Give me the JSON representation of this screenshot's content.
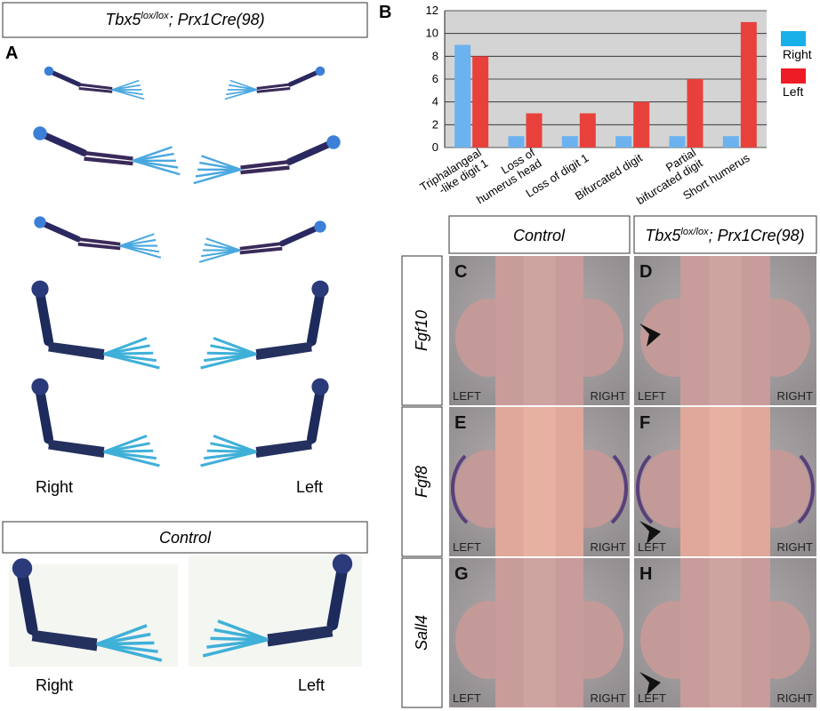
{
  "panel_a": {
    "label": "A",
    "title": {
      "gene": "Tbx5",
      "sup": "lox/lox",
      "rest": "; Prx1Cre(98)"
    },
    "side_labels": [
      "Right",
      "Left"
    ],
    "control": {
      "title": "Control",
      "side_labels": [
        "Right",
        "Left"
      ]
    }
  },
  "panel_b_label": "B",
  "chart_data": {
    "type": "bar",
    "categories": [
      [
        "Triphalangeal",
        "-like digit 1"
      ],
      [
        "Loss of",
        "humerus head"
      ],
      [
        "Loss of digit 1"
      ],
      [
        "Bifurcated digit"
      ],
      [
        "Partial",
        "bifurcated digit"
      ],
      [
        "Short humerus"
      ]
    ],
    "series": [
      {
        "name": "Right",
        "color": "#6cb2ee",
        "legend_color": "#19b0ea",
        "values": [
          9,
          1,
          1,
          1,
          1,
          1
        ]
      },
      {
        "name": "Left",
        "color": "#e8413c",
        "legend_color": "#ee1c24",
        "values": [
          8,
          3,
          3,
          4,
          6,
          11
        ]
      }
    ],
    "ylim": [
      0,
      12
    ],
    "yticks": [
      0,
      2,
      4,
      6,
      8,
      10,
      12
    ],
    "grid": true
  },
  "panel_cdh": {
    "column_headers": {
      "control": "Control",
      "mutant": {
        "gene": "Tbx5",
        "sup": "lox/lox",
        "rest": "; Prx1Cre(98)"
      }
    },
    "rows": [
      {
        "gene": "Fgf10",
        "panels": [
          {
            "label": "C",
            "left": "LEFT",
            "right": "RIGHT"
          },
          {
            "label": "D",
            "left": "LEFT",
            "right": "RIGHT"
          }
        ]
      },
      {
        "gene": "Fgf8",
        "panels": [
          {
            "label": "E",
            "left": "LEFT",
            "right": "RIGHT"
          },
          {
            "label": "F",
            "left": "LEFT",
            "right": "RIGHT"
          }
        ]
      },
      {
        "gene": "Sall4",
        "panels": [
          {
            "label": "G",
            "left": "LEFT",
            "right": "RIGHT"
          },
          {
            "label": "H",
            "left": "LEFT",
            "right": "RIGHT"
          }
        ]
      }
    ]
  }
}
